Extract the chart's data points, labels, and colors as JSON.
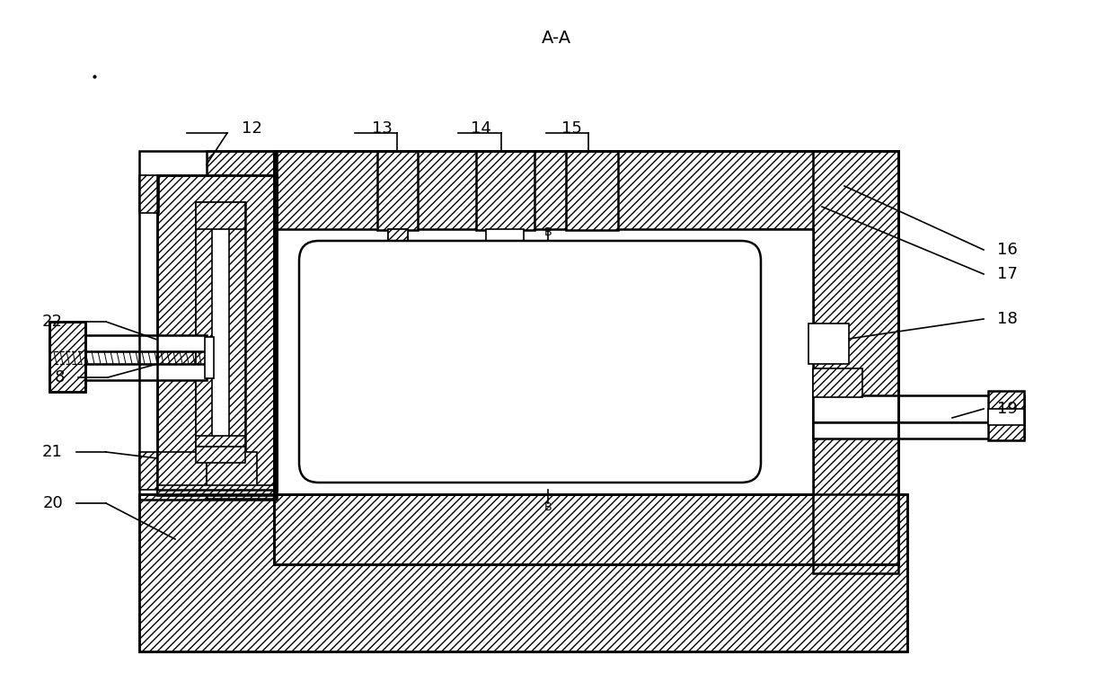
{
  "title": "A-A",
  "bg": "#ffffff",
  "black": "#000000",
  "figsize": [
    12.39,
    7.79
  ],
  "dpi": 100,
  "lw_main": 1.8,
  "lw_thin": 1.2,
  "hatch_density": "////",
  "font_size_label": 13,
  "font_size_title": 14
}
